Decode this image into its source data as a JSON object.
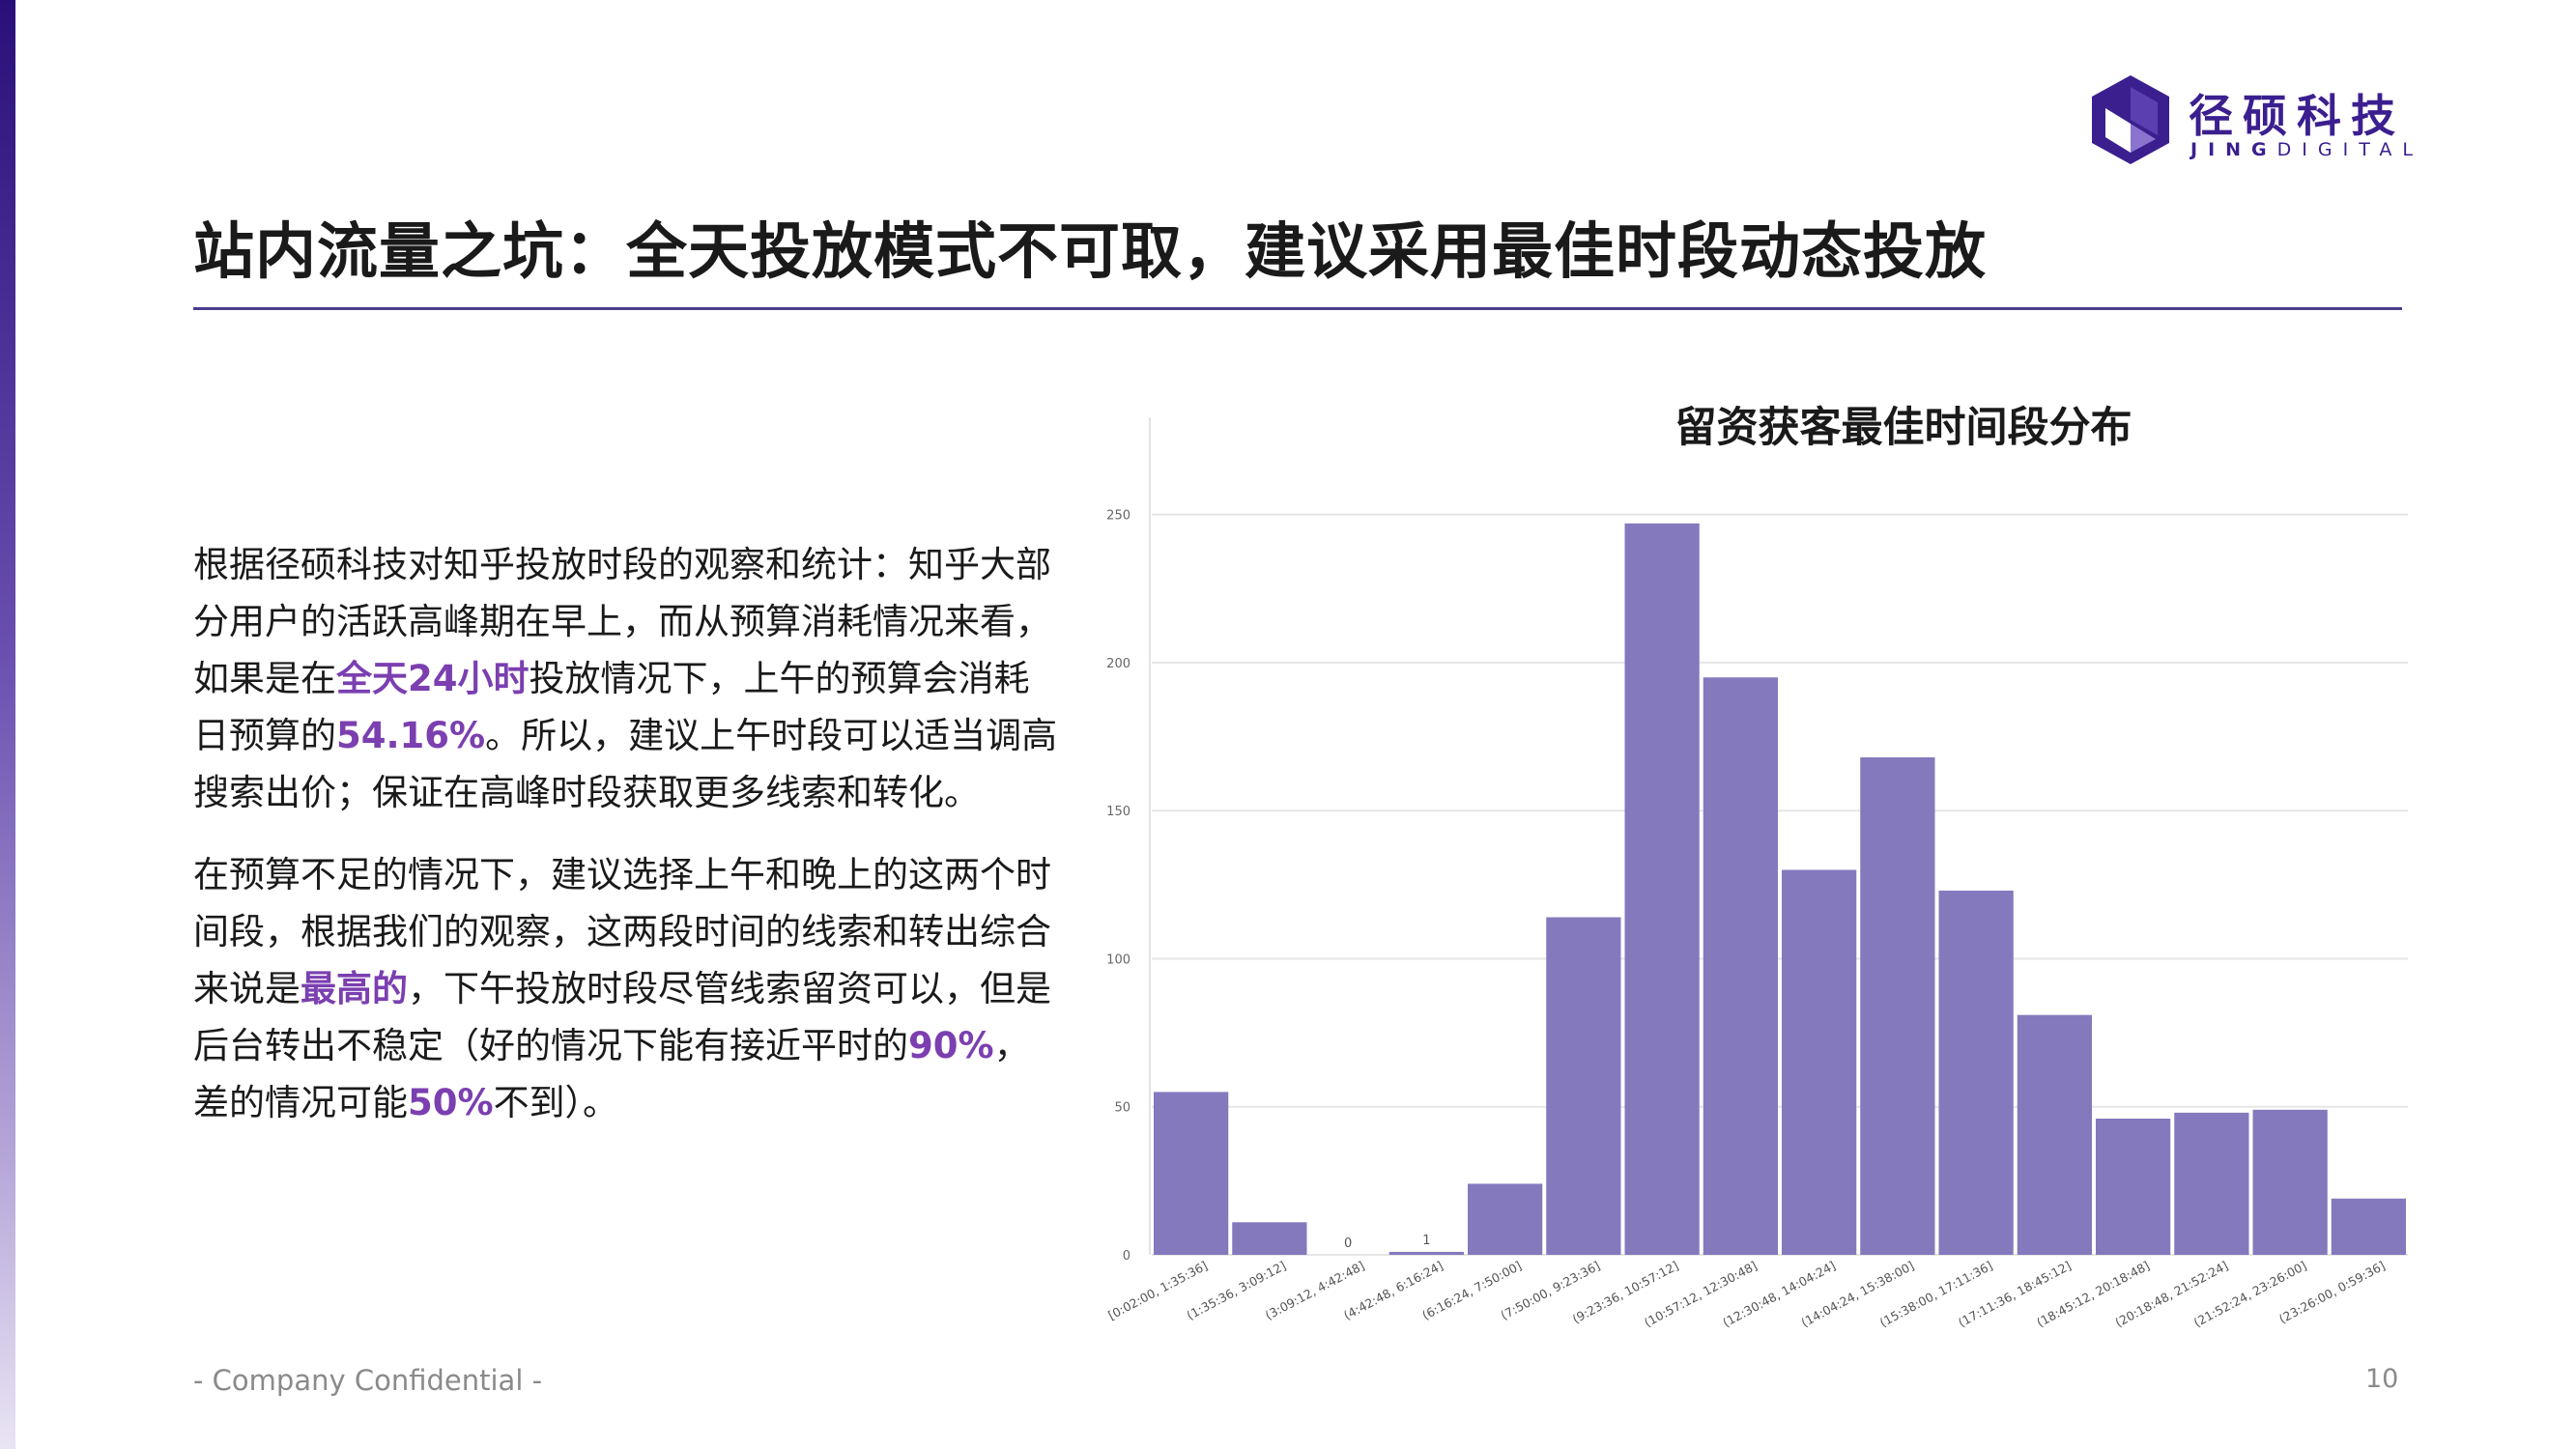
{
  "brand": {
    "name_cn": "径硕科技",
    "name_en_bold": "JING",
    "name_en_light": "DIGITAL",
    "accent": "#3b1f8f"
  },
  "page": {
    "title": "站内流量之坑：全天投放模式不可取，建议采用最佳时段动态投放",
    "footer": "- Company Confidential -",
    "page_number": "10"
  },
  "body": {
    "p1": [
      {
        "text": "根据径硕科技对知乎投放时段的观察和统计：知乎大部分用户的活跃高峰期在早上，而从预算消耗情况来看，如果是在",
        "hl": false
      },
      {
        "text": "全天24小时",
        "hl": true
      },
      {
        "text": "投放情况下，上午的预算会消耗日预算的",
        "hl": false
      },
      {
        "text": "54.16%",
        "hl": true
      },
      {
        "text": "。所以，建议上午时段可以适当调高搜索出价；保证在高峰时段获取更多线索和转化。",
        "hl": false
      }
    ],
    "p2": [
      {
        "text": "在预算不足的情况下，建议选择上午和晚上的这两个时间段，根据我们的观察，这两段时间的线索和转出综合来说是",
        "hl": false
      },
      {
        "text": "最高的",
        "hl": true
      },
      {
        "text": "，下午投放时段尽管线索留资可以，但是后台转出不稳定（好的情况下能有接近平时的",
        "hl": false
      },
      {
        "text": "90%",
        "hl": true
      },
      {
        "text": "，差的情况可能",
        "hl": false
      },
      {
        "text": "50%",
        "hl": true
      },
      {
        "text": "不到）。",
        "hl": false
      }
    ],
    "highlight_color": "#7b3fb0"
  },
  "chart_data": {
    "type": "bar",
    "title": "留资获客最佳时间段分布",
    "categories": [
      "[0:02:00, 1:35:36]",
      "(1:35:36, 3:09:12]",
      "(3:09:12, 4:42:48]",
      "(4:42:48, 6:16:24]",
      "(6:16:24, 7:50:00]",
      "(7:50:00, 9:23:36]",
      "(9:23:36, 10:57:12]",
      "(10:57:12, 12:30:48]",
      "(12:30:48, 14:04:24]",
      "(14:04:24, 15:38:00]",
      "(15:38:00, 17:11:36]",
      "(17:11:36, 18:45:12]",
      "(18:45:12, 20:18:48]",
      "(20:18:48, 21:52:24]",
      "(21:52:24, 23:26:00]",
      "(23:26:00, 0:59:36]"
    ],
    "values": [
      55,
      11,
      0,
      1,
      24,
      114,
      247,
      195,
      130,
      168,
      123,
      81,
      46,
      48,
      49,
      19
    ],
    "data_labels": {
      "2": "0",
      "3": "1"
    },
    "y_ticks": [
      0,
      50,
      100,
      150,
      200,
      250
    ],
    "ylim": [
      0,
      260
    ],
    "bar_color": "#8479bd",
    "grid": true
  }
}
